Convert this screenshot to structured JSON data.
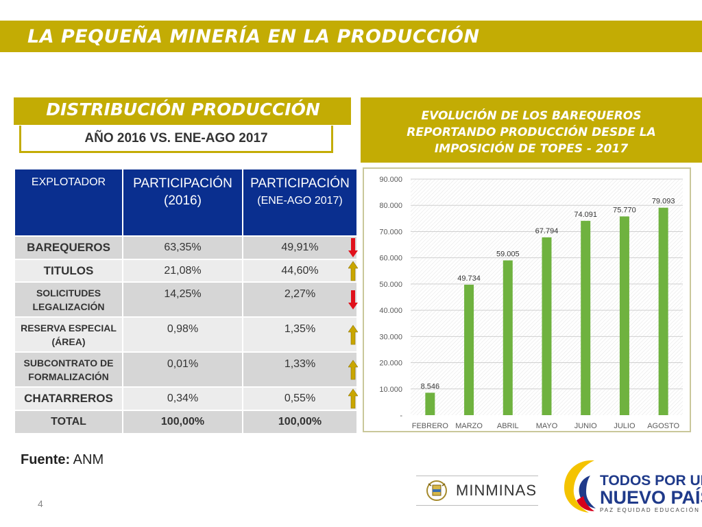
{
  "header": {
    "title": "LA PEQUEÑA MINERÍA EN LA PRODUCCIÓN"
  },
  "distribution": {
    "title": "DISTRIBUCIÓN PRODUCCIÓN",
    "subtitle": "AÑO 2016 VS. ENE-AGO 2017"
  },
  "evolution": {
    "title_line1": "EVOLUCIÓN DE LOS BAREQUEROS",
    "title_line2": "REPORTANDO PRODUCCIÓN DESDE LA",
    "title_line3": "IMPOSICIÓN DE TOPES - 2017"
  },
  "table": {
    "headers": {
      "explotador": "EXPLOTADOR",
      "part_2016_l1": "PARTICIPACIÓN",
      "part_2016_l2": "(2016)",
      "part_2017_l1": "PARTICIPACIÓN",
      "part_2017_l2": "(ENE-AGO 2017)"
    },
    "rows": [
      {
        "name": "BAREQUEROS",
        "v2016": "63,35%",
        "v2017": "49,91%",
        "trend": "down"
      },
      {
        "name": "TITULOS",
        "v2016": "21,08%",
        "v2017": "44,60%",
        "trend": "up"
      },
      {
        "name_l1": "SOLICITUDES",
        "name_l2": "LEGALIZACIÓN",
        "v2016": "14,25%",
        "v2017": "2,27%",
        "trend": "down"
      },
      {
        "name_l1": "RESERVA ESPECIAL",
        "name_l2": "(ÁREA)",
        "v2016": "0,98%",
        "v2017": "1,35%",
        "trend": "up"
      },
      {
        "name_l1": "SUBCONTRATO DE",
        "name_l2": "FORMALIZACIÓN",
        "v2016": "0,01%",
        "v2017": "1,33%",
        "trend": "up"
      },
      {
        "name": "CHATARREROS",
        "v2016": "0,34%",
        "v2017": "0,55%",
        "trend": "up"
      }
    ],
    "total": {
      "name": "TOTAL",
      "v2016": "100,00%",
      "v2017": "100,00%"
    }
  },
  "colors": {
    "accent_gold": "#c3ac04",
    "header_blue": "#0a2f8f",
    "bar_green": "#6fb23f",
    "arrow_down": "#e0111b",
    "arrow_up": "#c9a600"
  },
  "chart_data": {
    "type": "bar",
    "categories": [
      "FEBRERO",
      "MARZO",
      "ABRIL",
      "MAYO",
      "JUNIO",
      "JULIO",
      "AGOSTO"
    ],
    "values": [
      8546,
      49734,
      59005,
      67794,
      74091,
      75770,
      79093
    ],
    "value_labels": [
      "8.546",
      "49.734",
      "59.005",
      "67.794",
      "74.091",
      "75.770",
      "79.093"
    ],
    "y_ticks": [
      0,
      10000,
      20000,
      30000,
      40000,
      50000,
      60000,
      70000,
      80000,
      90000
    ],
    "y_tick_labels": [
      "-",
      "10.000",
      "20.000",
      "30.000",
      "40.000",
      "50.000",
      "60.000",
      "70.000",
      "80.000",
      "90.000"
    ],
    "ylim": [
      0,
      90000
    ],
    "grid": true,
    "legend": "none"
  },
  "footer": {
    "source_label": "Fuente:",
    "source_value": "ANM",
    "page_number": "4",
    "minminas": "MINMINAS",
    "todos_l1": "TODOS POR UN",
    "todos_l2": "NUEVO PAÍS",
    "todos_l3": "PAZ  EQUIDAD  EDUCACIÓN"
  }
}
